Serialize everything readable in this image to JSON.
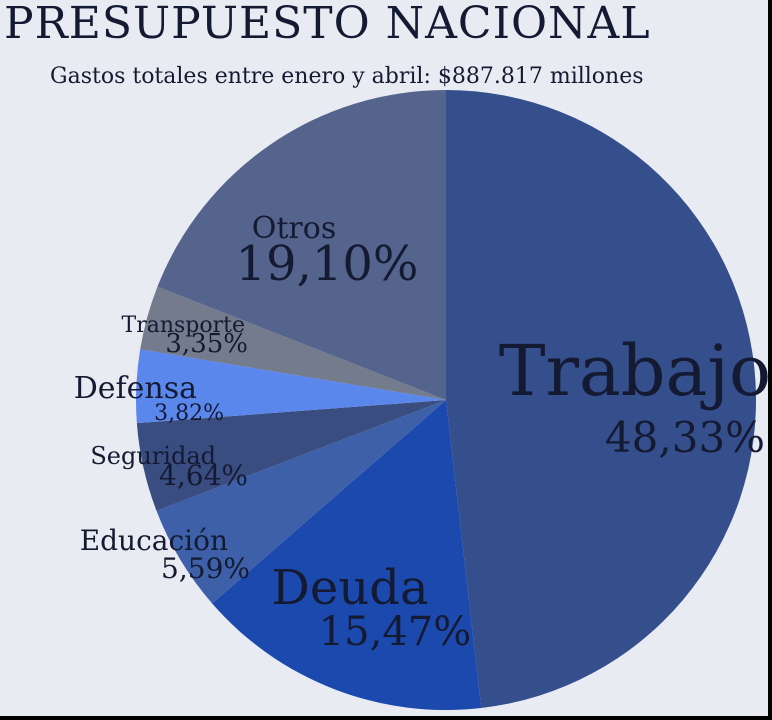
{
  "colors": {
    "background": "#e8ebf1",
    "text": "#151a33"
  },
  "chart_data": {
    "type": "pie",
    "title": "PRESUPUESTO NACIONAL",
    "subtitle": "Gastos totales entre enero y abril: $887.817 millones",
    "slices": [
      {
        "label": "Trabajo",
        "value": 48.33,
        "value_label": "48,33%",
        "color": "#344f8c"
      },
      {
        "label": "Deuda",
        "value": 15.47,
        "value_label": "15,47%",
        "color": "#1c49ad"
      },
      {
        "label": "Educación",
        "value": 5.59,
        "value_label": "5,59%",
        "color": "#3d60a8"
      },
      {
        "label": "Seguridad",
        "value": 4.64,
        "value_label": "4,64%",
        "color": "#394d80"
      },
      {
        "label": "Defensa",
        "value": 3.82,
        "value_label": "3,82%",
        "color": "#5a87eb"
      },
      {
        "label": "Transporte",
        "value": 3.35,
        "value_label": "3,35%",
        "color": "#737b8c"
      },
      {
        "label": "Otros",
        "value": 19.1,
        "value_label": "19,10%",
        "color": "#54648c"
      }
    ],
    "start_angle": "12 o'clock",
    "direction": "clockwise"
  }
}
